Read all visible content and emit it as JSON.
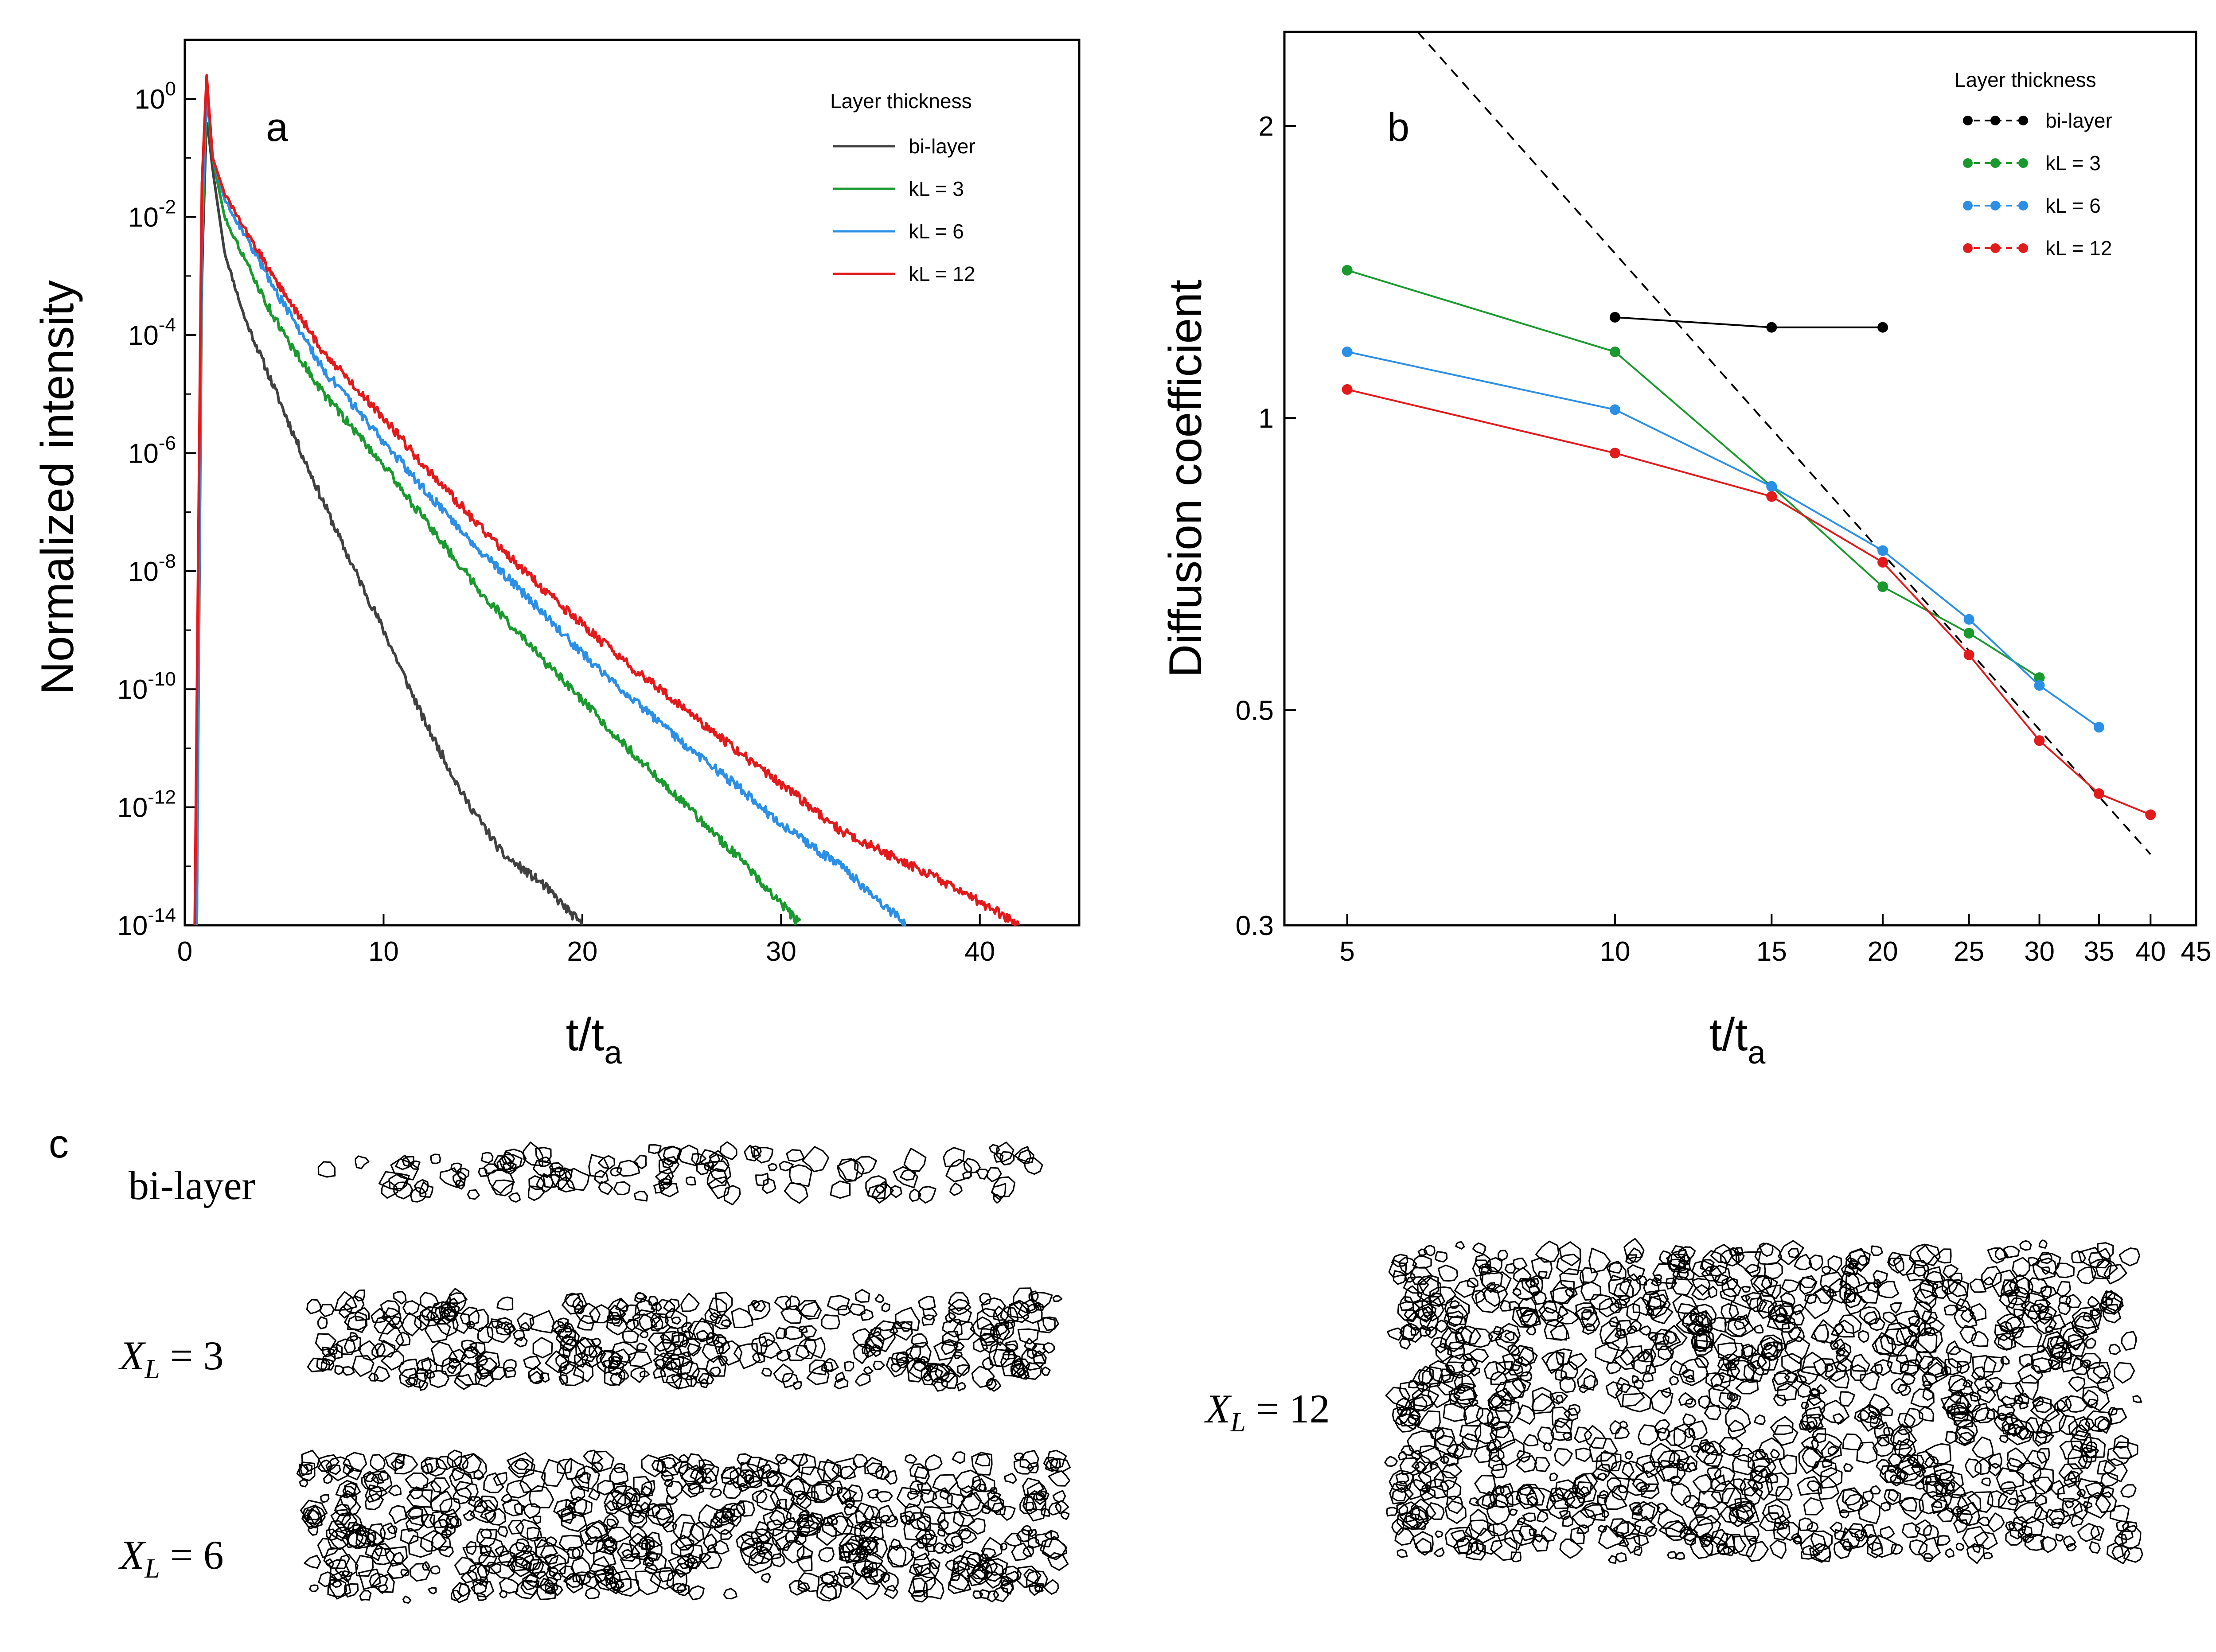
{
  "chart_data": [
    {
      "type": "line",
      "panel": "a",
      "title": "",
      "xlabel": "t/t",
      "xlabel_sub": "a",
      "ylabel": "Normalized intensity",
      "xlim": [
        0,
        45
      ],
      "ylim_log10": [
        -14,
        1
      ],
      "x_ticks": [
        "0",
        "10",
        "20",
        "30",
        "40"
      ],
      "y_ticks": [
        {
          "base": "10",
          "exp": "0"
        },
        {
          "base": "10",
          "exp": "-2"
        },
        {
          "base": "10",
          "exp": "-4"
        },
        {
          "base": "10",
          "exp": "-6"
        },
        {
          "base": "10",
          "exp": "-8"
        },
        {
          "base": "10",
          "exp": "-10"
        },
        {
          "base": "10",
          "exp": "-12"
        },
        {
          "base": "10",
          "exp": "-14"
        }
      ],
      "legend_title": "Layer thickness",
      "legend_position": "top-right",
      "series": [
        {
          "name": "bi-layer",
          "color": "#404040",
          "x": [
            0.6,
            0.85,
            1.1,
            1.4,
            2,
            3,
            4,
            5,
            6,
            8,
            10,
            12,
            14,
            16,
            18,
            20
          ],
          "log10_y": [
            -14,
            -3,
            -0.3,
            -1.2,
            -2.6,
            -3.7,
            -4.5,
            -5.3,
            -6.1,
            -7.6,
            -9.0,
            -10.5,
            -11.8,
            -12.8,
            -13.3,
            -14
          ]
        },
        {
          "name": "kL = 3",
          "color": "#1a9a2e",
          "x": [
            0.6,
            0.85,
            1.1,
            1.4,
            2,
            3,
            4,
            5,
            7,
            10,
            12,
            15,
            18,
            20,
            22,
            25,
            28,
            31
          ],
          "log10_y": [
            -14,
            -2.5,
            0.1,
            -1.0,
            -2.0,
            -2.7,
            -3.4,
            -4.0,
            -5.0,
            -6.2,
            -7.1,
            -8.4,
            -9.5,
            -10.2,
            -10.9,
            -11.9,
            -12.9,
            -14
          ]
        },
        {
          "name": "kL = 6",
          "color": "#2b8fe6",
          "x": [
            0.6,
            0.85,
            1.1,
            1.4,
            2,
            3,
            5,
            7,
            10,
            12,
            15,
            18,
            20,
            22,
            25,
            28,
            30,
            33,
            36.3
          ],
          "log10_y": [
            -14,
            -2.2,
            0.25,
            -1.0,
            -1.7,
            -2.3,
            -3.5,
            -4.6,
            -5.8,
            -6.6,
            -7.7,
            -8.7,
            -9.4,
            -10.0,
            -10.9,
            -11.7,
            -12.3,
            -13.0,
            -14
          ]
        },
        {
          "name": "kL = 12",
          "color": "#e31a1c",
          "x": [
            0.5,
            0.85,
            1.1,
            1.4,
            2,
            3,
            5,
            7,
            10,
            12,
            15,
            18,
            20,
            22,
            25,
            28,
            30,
            33,
            36,
            39,
            42
          ],
          "log10_y": [
            -14,
            -1.5,
            0.4,
            -1.0,
            -1.6,
            -2.2,
            -3.3,
            -4.3,
            -5.4,
            -6.2,
            -7.3,
            -8.3,
            -8.9,
            -9.5,
            -10.3,
            -11.1,
            -11.6,
            -12.4,
            -12.9,
            -13.4,
            -14
          ]
        }
      ]
    },
    {
      "type": "line",
      "panel": "b",
      "title": "",
      "xlabel": "t/t",
      "xlabel_sub": "a",
      "ylabel": "Diffusion coefficient",
      "xscale": "log",
      "yscale": "log",
      "xlim": [
        4.25,
        45
      ],
      "ylim": [
        0.3,
        2.5
      ],
      "x_ticks": [
        5,
        10,
        15,
        20,
        25,
        30,
        35,
        40,
        45
      ],
      "x_tick_labels": [
        "5",
        "10",
        "15",
        "20",
        "25",
        "30",
        "35",
        "40",
        "45"
      ],
      "y_ticks": [
        0.3,
        0.5,
        1,
        2
      ],
      "y_tick_labels": [
        "0.3",
        "0.5",
        "1",
        "2"
      ],
      "legend_title": "Layer thickness",
      "legend_position": "top-right",
      "reference_line": {
        "style": "dashed",
        "color": "#000000",
        "x": [
          6,
          40
        ],
        "y": [
          2.5,
          0.355
        ]
      },
      "series": [
        {
          "name": "bi-layer",
          "color": "#000000",
          "x": [
            10,
            15,
            20
          ],
          "y": [
            1.27,
            1.24,
            1.24
          ]
        },
        {
          "name": "kL = 3",
          "color": "#1a9a2e",
          "x": [
            5,
            10,
            15,
            20,
            25,
            30
          ],
          "y": [
            1.42,
            1.17,
            0.85,
            0.67,
            0.6,
            0.54
          ]
        },
        {
          "name": "kL = 6",
          "color": "#2b8fe6",
          "x": [
            5,
            10,
            15,
            20,
            25,
            30,
            35
          ],
          "y": [
            1.17,
            1.02,
            0.85,
            0.73,
            0.62,
            0.53,
            0.48
          ]
        },
        {
          "name": "kL = 12",
          "color": "#e31a1c",
          "x": [
            5,
            10,
            15,
            20,
            25,
            30,
            35,
            40
          ],
          "y": [
            1.07,
            0.92,
            0.83,
            0.71,
            0.57,
            0.465,
            0.41,
            0.39
          ]
        }
      ]
    }
  ],
  "panel_c": {
    "label": "c",
    "samples": [
      {
        "name": "bi-layer",
        "var": "",
        "sub": "",
        "eq": ""
      },
      {
        "name": "",
        "var": "X",
        "sub": "L",
        "eq": " = 3"
      },
      {
        "name": "",
        "var": "X",
        "sub": "L",
        "eq": " = 6"
      },
      {
        "name": "",
        "var": "X",
        "sub": "L",
        "eq": " = 12"
      }
    ]
  }
}
